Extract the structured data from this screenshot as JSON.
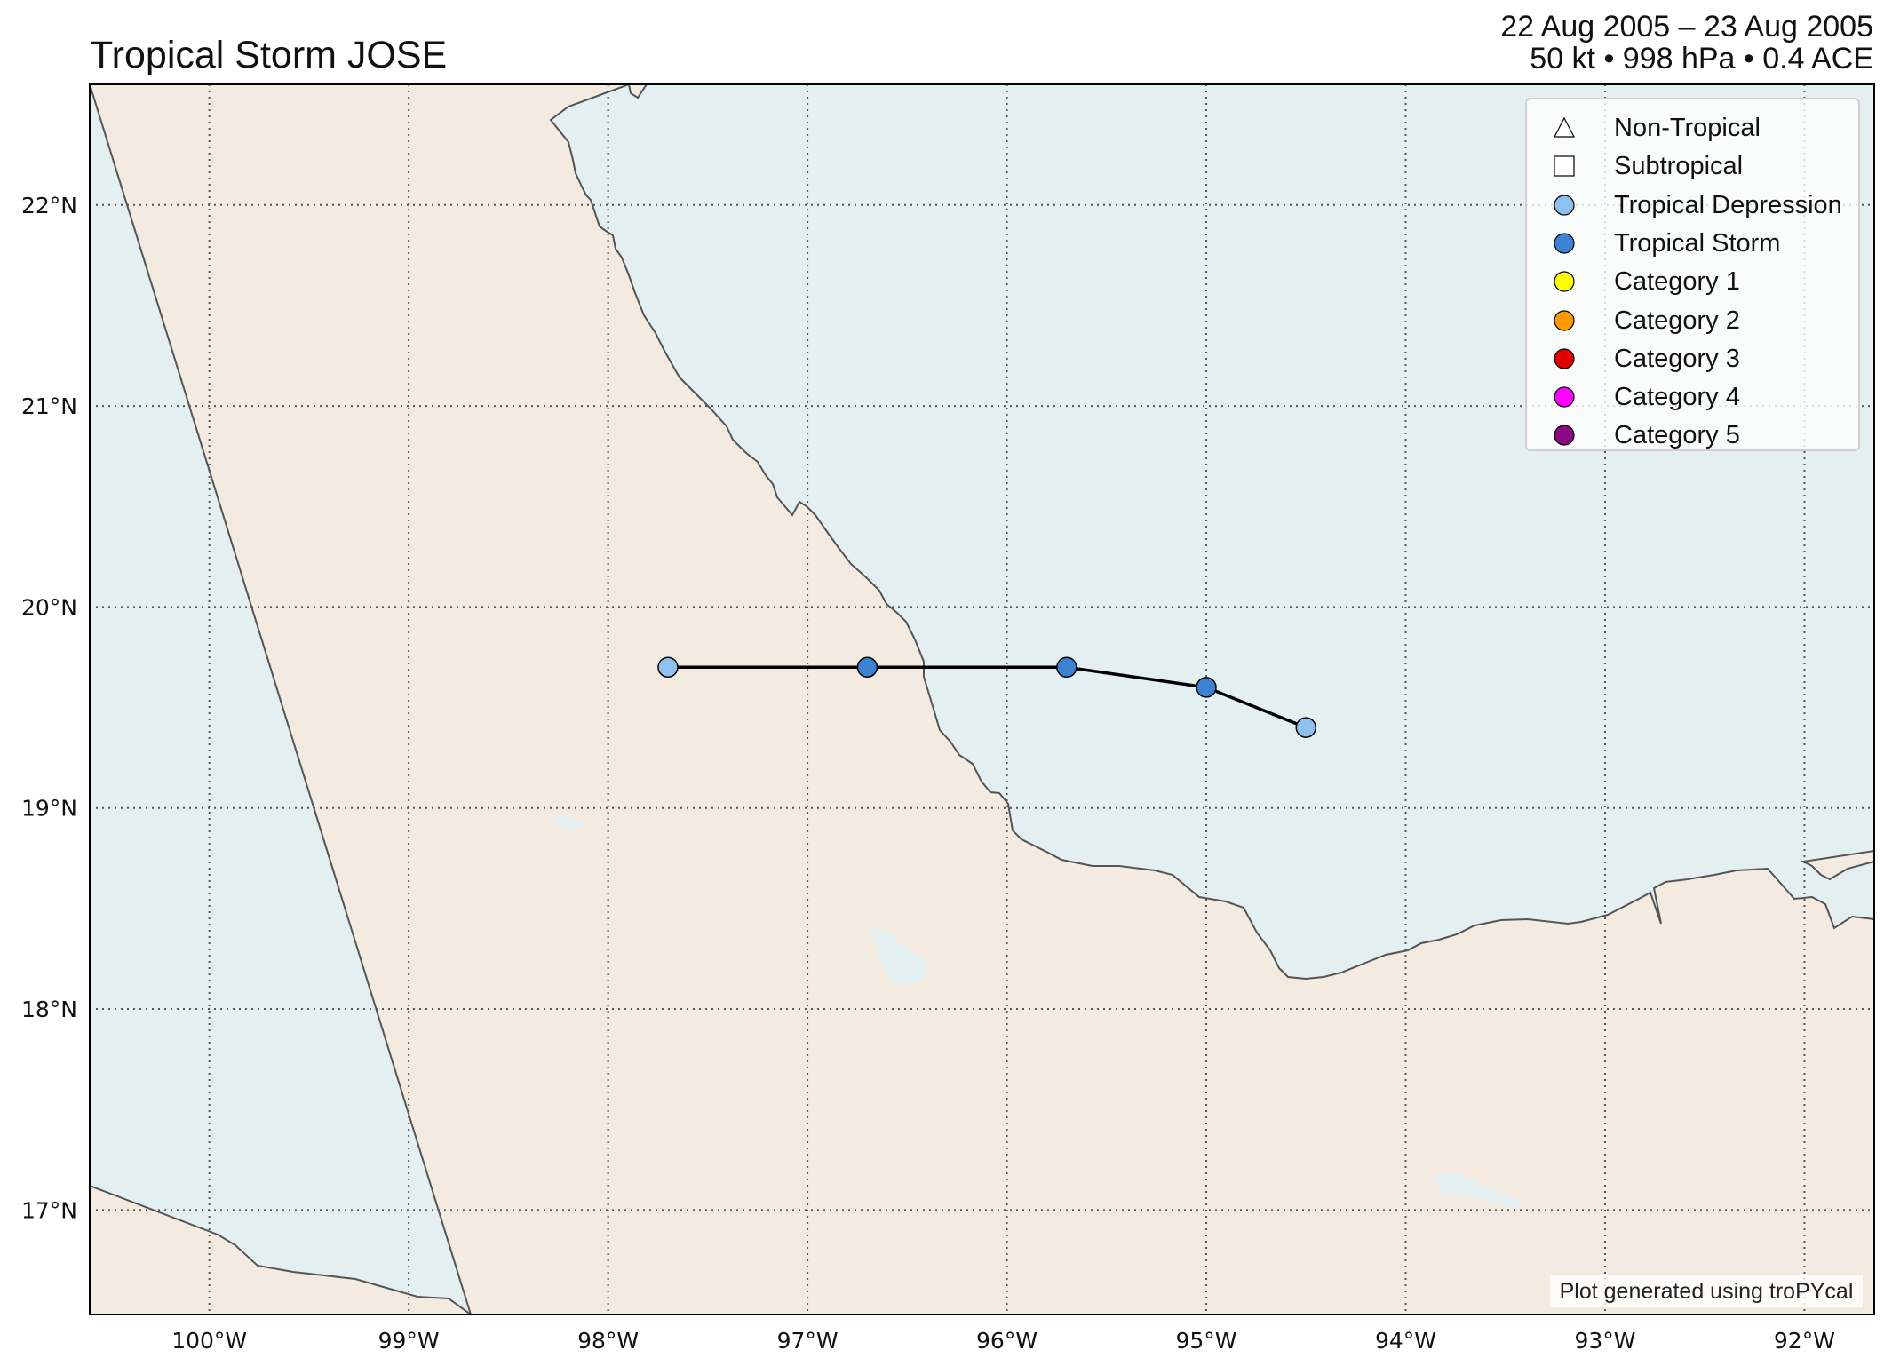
{
  "header": {
    "title": "Tropical Storm JOSE",
    "dates": "22 Aug 2005 – 23 Aug 2005",
    "stats": "50 kt • 998 hPa • 0.4 ACE"
  },
  "map": {
    "lon_range": [
      -100.6,
      -91.65
    ],
    "lat_range": [
      16.48,
      22.6
    ],
    "land_color": "#f3ebe0",
    "water_color": "#e3eff1",
    "coast_color": "#555555",
    "grid_style": "dotted",
    "lon_ticks": [
      {
        "value": -100,
        "label": "100°W"
      },
      {
        "value": -99,
        "label": "99°W"
      },
      {
        "value": -98,
        "label": "98°W"
      },
      {
        "value": -97,
        "label": "97°W"
      },
      {
        "value": -96,
        "label": "96°W"
      },
      {
        "value": -95,
        "label": "95°W"
      },
      {
        "value": -94,
        "label": "94°W"
      },
      {
        "value": -93,
        "label": "93°W"
      },
      {
        "value": -92,
        "label": "92°W"
      }
    ],
    "lat_ticks": [
      {
        "value": 22,
        "label": "22°N"
      },
      {
        "value": 21,
        "label": "21°N"
      },
      {
        "value": 20,
        "label": "20°N"
      },
      {
        "value": 19,
        "label": "19°N"
      },
      {
        "value": 18,
        "label": "18°N"
      },
      {
        "value": 17,
        "label": "17°N"
      }
    ]
  },
  "chart_data": {
    "type": "scatter",
    "x_axis": "longitude",
    "y_axis": "latitude",
    "track": [
      {
        "lon": -97.7,
        "lat": 19.7,
        "category": "Tropical Depression"
      },
      {
        "lon": -96.7,
        "lat": 19.7,
        "category": "Tropical Storm"
      },
      {
        "lon": -95.7,
        "lat": 19.7,
        "category": "Tropical Storm"
      },
      {
        "lon": -95.0,
        "lat": 19.6,
        "category": "Tropical Storm"
      },
      {
        "lon": -94.5,
        "lat": 19.4,
        "category": "Tropical Depression"
      }
    ],
    "category_colors": {
      "Tropical Depression": "#8fc0ee",
      "Tropical Storm": "#3c82d2",
      "Category 1": "#ffff00",
      "Category 2": "#ff9900",
      "Category 3": "#e00000",
      "Category 4": "#ff00ff",
      "Category 5": "#8b0a84"
    },
    "legend": {
      "placement": "top-right",
      "items": [
        {
          "label": "Non-Tropical",
          "shape": "triangle",
          "color": "#ffffff"
        },
        {
          "label": "Subtropical",
          "shape": "square",
          "color": "#ffffff"
        },
        {
          "label": "Tropical Depression",
          "shape": "circle",
          "color": "#8fc0ee"
        },
        {
          "label": "Tropical Storm",
          "shape": "circle",
          "color": "#3c82d2"
        },
        {
          "label": "Category 1",
          "shape": "circle",
          "color": "#ffff00"
        },
        {
          "label": "Category 2",
          "shape": "circle",
          "color": "#ff9900"
        },
        {
          "label": "Category 3",
          "shape": "circle",
          "color": "#e00000"
        },
        {
          "label": "Category 4",
          "shape": "circle",
          "color": "#ff00ff"
        },
        {
          "label": "Category 5",
          "shape": "circle",
          "color": "#8b0a84"
        }
      ]
    }
  },
  "footer": {
    "credit": "Plot generated using troPYcal"
  }
}
